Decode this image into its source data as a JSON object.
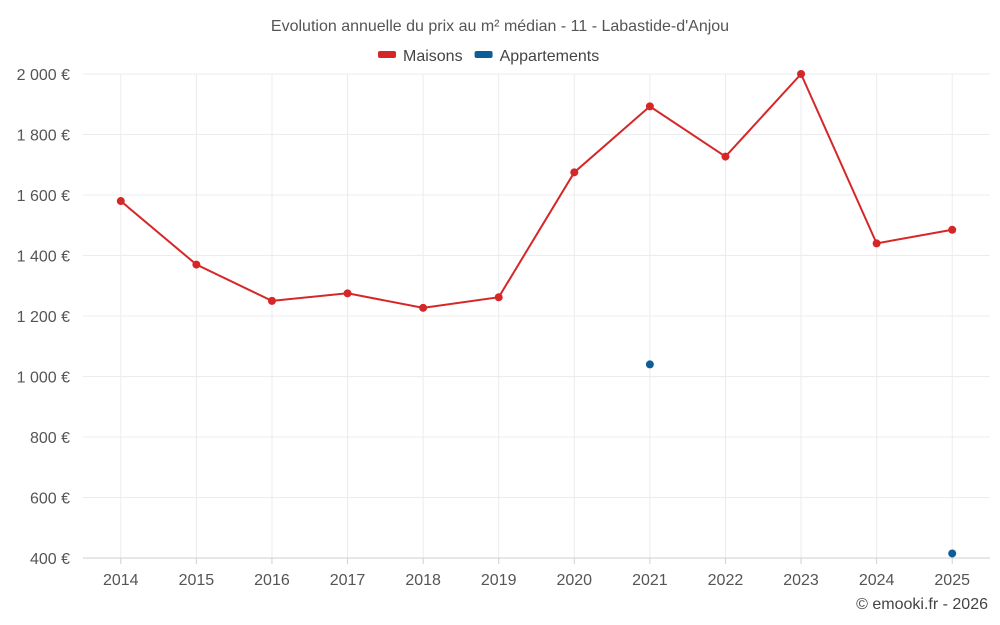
{
  "chart_data": {
    "type": "line",
    "title": "Evolution annuelle du prix au m² médian - 11 - Labastide-d'Anjou",
    "categories": [
      "2014",
      "2015",
      "2016",
      "2017",
      "2018",
      "2019",
      "2020",
      "2021",
      "2022",
      "2023",
      "2024",
      "2025"
    ],
    "series": [
      {
        "name": "Maisons",
        "color": "#d62728",
        "values": [
          1580,
          1370,
          1250,
          1275,
          1227,
          1262,
          1675,
          1893,
          1727,
          2000,
          1440,
          1485
        ]
      },
      {
        "name": "Appartements",
        "color": "#0c5f96",
        "values": [
          null,
          null,
          null,
          null,
          null,
          null,
          null,
          1040,
          null,
          null,
          null,
          415
        ]
      }
    ],
    "ylim": [
      400,
      2000
    ],
    "yticks": [
      400,
      600,
      800,
      1000,
      1200,
      1400,
      1600,
      1800,
      2000
    ],
    "ytick_labels": [
      "400 €",
      "600 €",
      "800 €",
      "1 000 €",
      "1 200 €",
      "1 400 €",
      "1 600 €",
      "1 800 €",
      "2 000 €"
    ],
    "xlabel": "",
    "ylabel": "",
    "grid": true,
    "legend_position": "top-center"
  },
  "credit": "© emooki.fr - 2026"
}
